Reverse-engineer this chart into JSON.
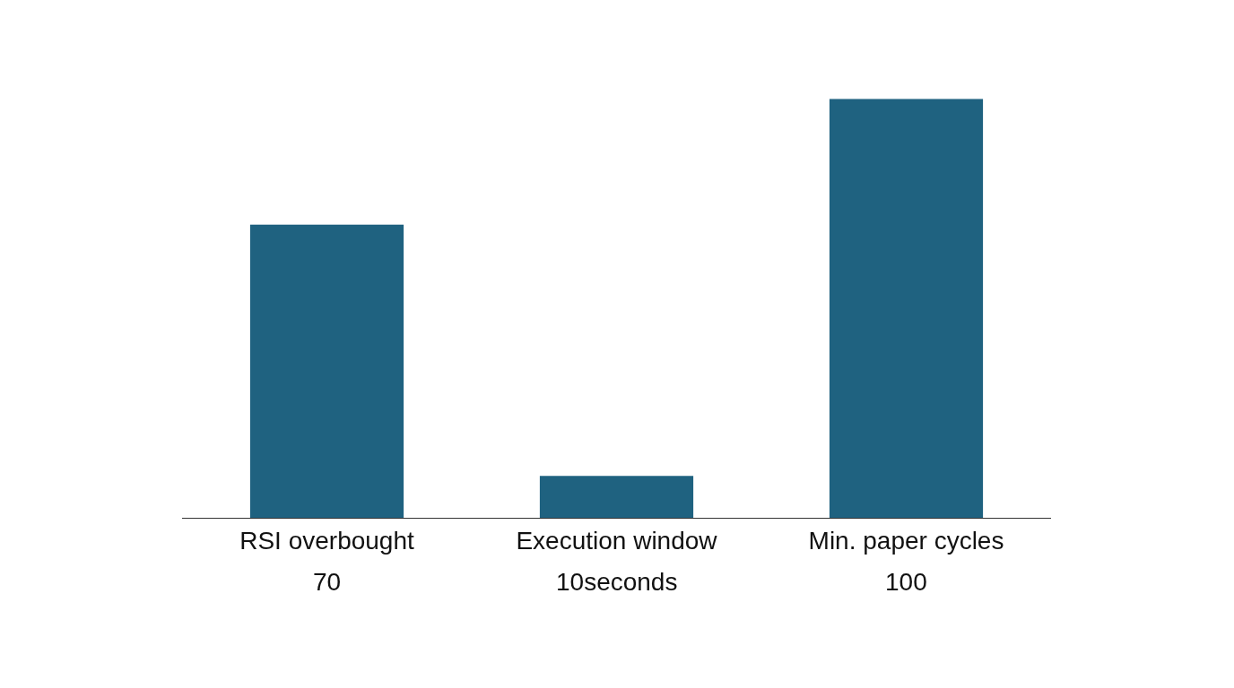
{
  "chart_data": {
    "type": "bar",
    "categories": [
      "RSI overbought",
      "Execution window",
      "Min. paper cycles"
    ],
    "values": [
      70,
      10,
      100
    ],
    "value_labels": [
      "70",
      "10seconds",
      "100"
    ],
    "color": "#1f6280",
    "legend": false,
    "tick_labels": "x"
  }
}
